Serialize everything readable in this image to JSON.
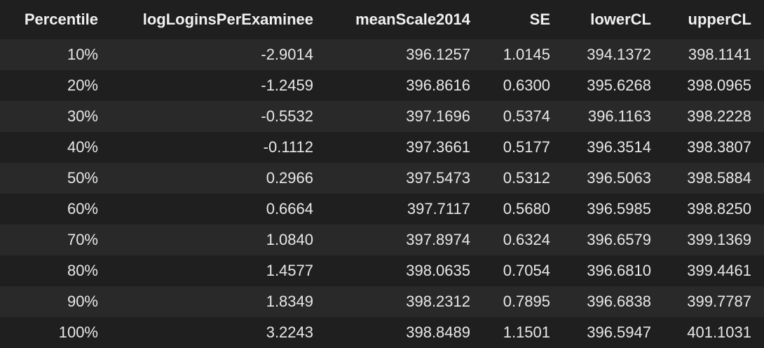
{
  "table": {
    "columns": [
      "Percentile",
      "logLoginsPerExaminee",
      "meanScale2014",
      "SE",
      "lowerCL",
      "upperCL"
    ],
    "rows": [
      [
        "10%",
        "-2.9014",
        "396.1257",
        "1.0145",
        "394.1372",
        "398.1141"
      ],
      [
        "20%",
        "-1.2459",
        "396.8616",
        "0.6300",
        "395.6268",
        "398.0965"
      ],
      [
        "30%",
        "-0.5532",
        "397.1696",
        "0.5374",
        "396.1163",
        "398.2228"
      ],
      [
        "40%",
        "-0.1112",
        "397.3661",
        "0.5177",
        "396.3514",
        "398.3807"
      ],
      [
        "50%",
        "0.2966",
        "397.5473",
        "0.5312",
        "396.5063",
        "398.5884"
      ],
      [
        "60%",
        "0.6664",
        "397.7117",
        "0.5680",
        "396.5985",
        "398.8250"
      ],
      [
        "70%",
        "1.0840",
        "397.8974",
        "0.6324",
        "396.6579",
        "399.1369"
      ],
      [
        "80%",
        "1.4577",
        "398.0635",
        "0.7054",
        "396.6810",
        "399.4461"
      ],
      [
        "90%",
        "1.8349",
        "398.2312",
        "0.7895",
        "396.6838",
        "399.7787"
      ],
      [
        "100%",
        "3.2243",
        "398.8489",
        "1.1501",
        "396.5947",
        "401.1031"
      ]
    ]
  },
  "colors": {
    "background": "#1f1f1f",
    "stripe": "#292929",
    "text": "#e8e8e8"
  }
}
